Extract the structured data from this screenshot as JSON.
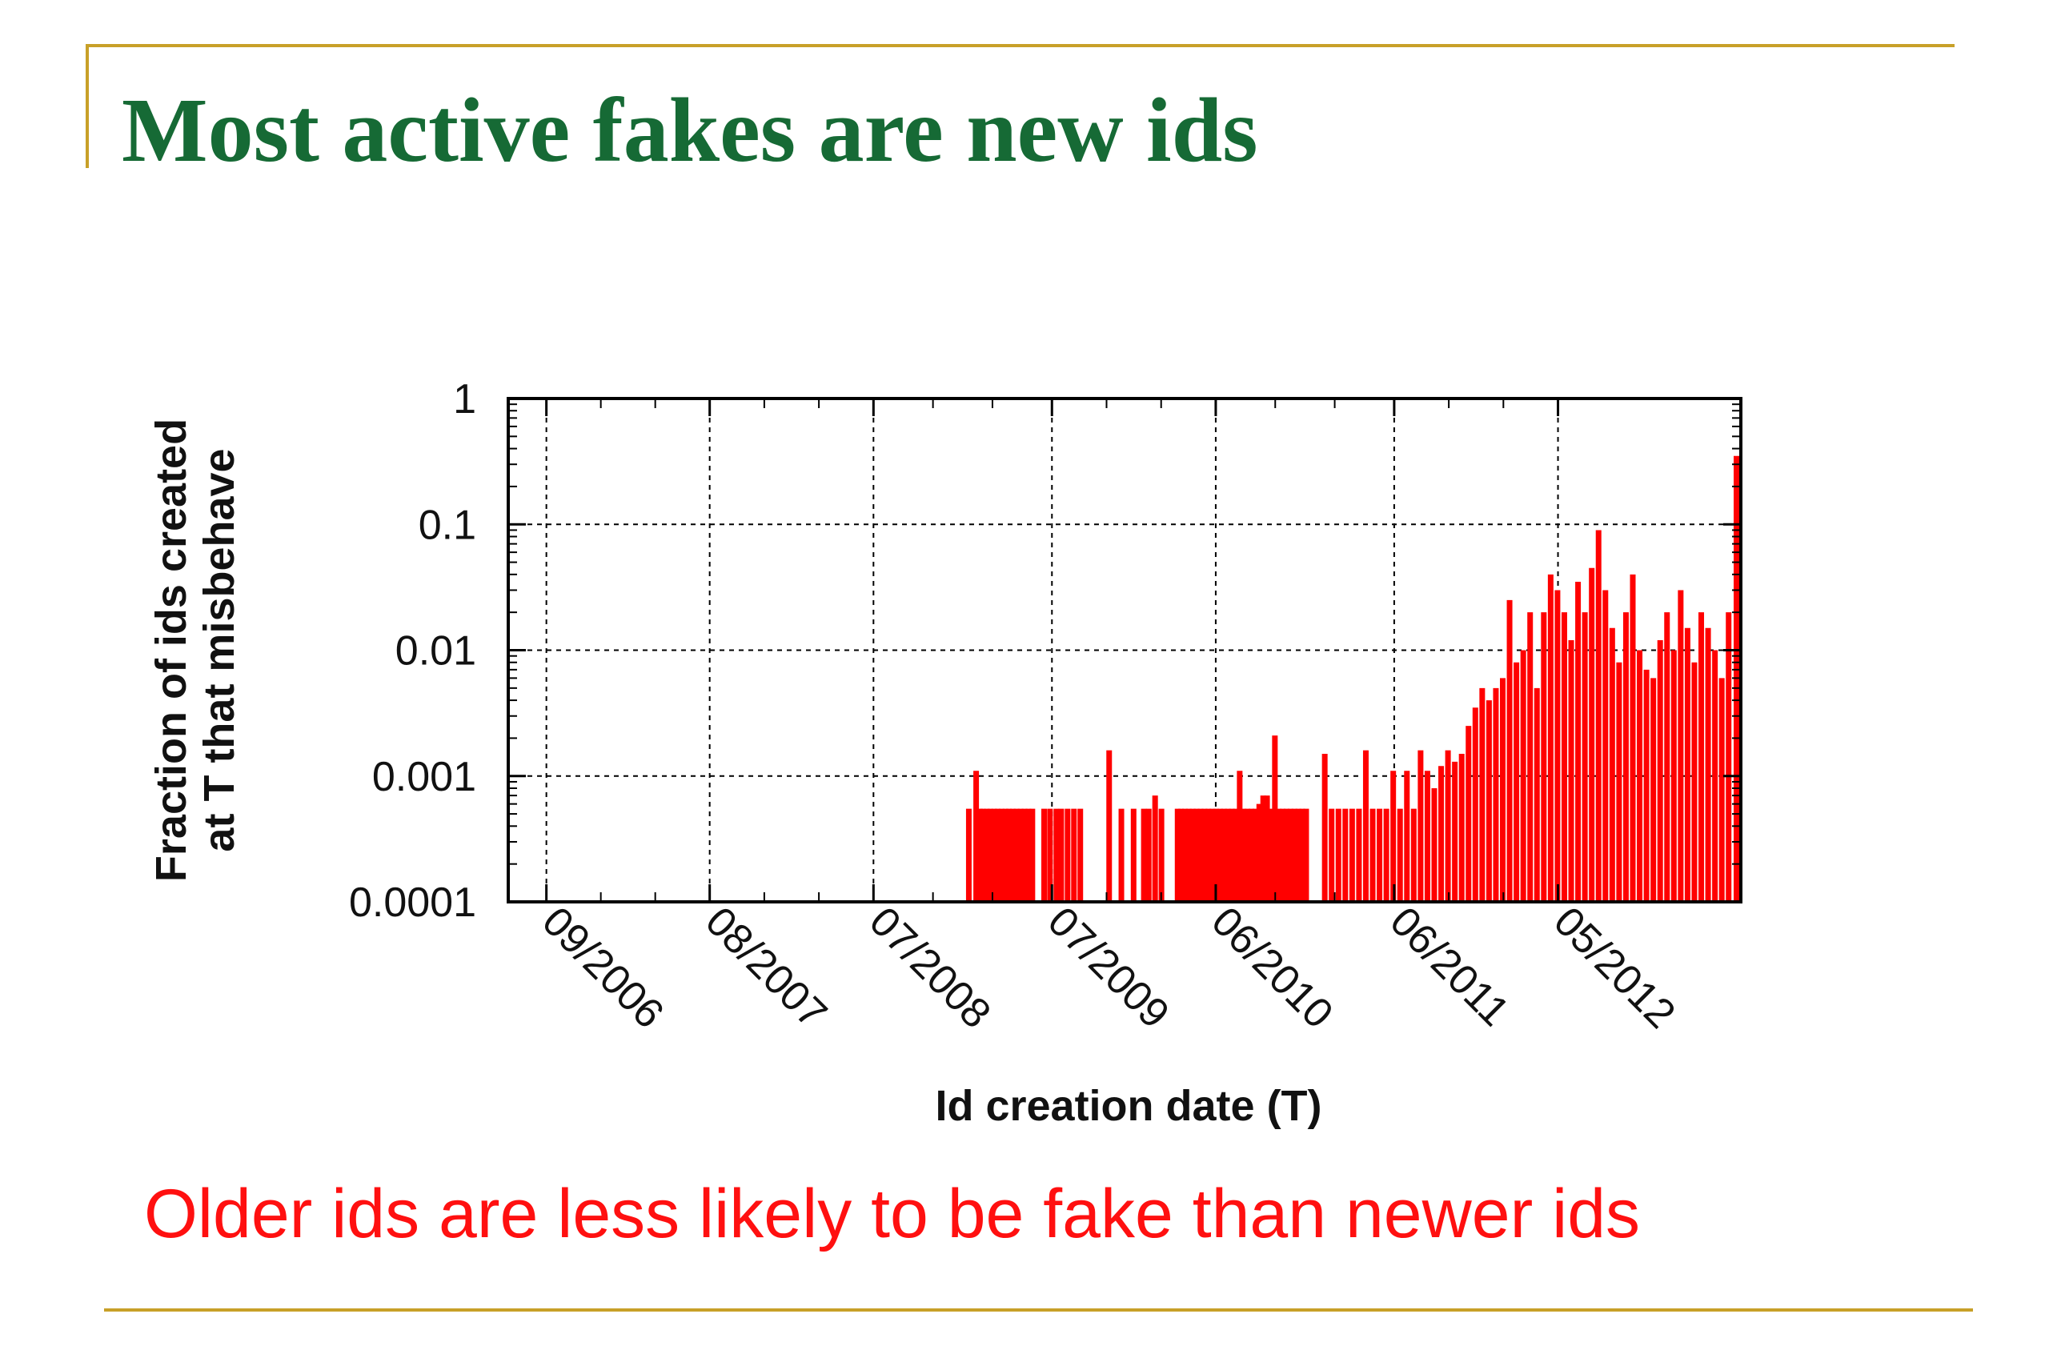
{
  "slide": {
    "title": "Most active fakes are new ids",
    "caption": "Older ids are less likely to be fake than newer ids",
    "colors": {
      "title": "#166a35",
      "rule": "#c8a028",
      "caption": "#ff1010"
    }
  },
  "chart_data": {
    "type": "bar",
    "y_scale": "log",
    "ylabel_lines": [
      "Fraction of ids created",
      "at T that misbehave"
    ],
    "xlabel": "Id creation date (T)",
    "ylim": [
      0.0001,
      1
    ],
    "y_ticks": [
      {
        "value": 0.0001,
        "label": "0.0001"
      },
      {
        "value": 0.001,
        "label": "0.001"
      },
      {
        "value": 0.01,
        "label": "0.01"
      },
      {
        "value": 0.1,
        "label": "0.1"
      },
      {
        "value": 1,
        "label": "1"
      }
    ],
    "xlim": [
      "2006-06-15",
      "2013-05-10"
    ],
    "x_ticks": [
      {
        "date": "2006-09-01",
        "label": "09/2006"
      },
      {
        "date": "2007-08-01",
        "label": "08/2007"
      },
      {
        "date": "2008-07-01",
        "label": "07/2008"
      },
      {
        "date": "2009-07-01",
        "label": "07/2009"
      },
      {
        "date": "2010-06-01",
        "label": "06/2010"
      },
      {
        "date": "2011-06-01",
        "label": "06/2011"
      },
      {
        "date": "2012-05-01",
        "label": "05/2012"
      }
    ],
    "grid": true,
    "bar_color": "#ff0000",
    "series": [
      {
        "x": [
          "2009-01-12",
          "2009-01-27",
          "2009-02-04",
          "2009-02-10",
          "2009-02-18",
          "2009-02-25",
          "2009-03-05",
          "2009-03-12",
          "2009-03-20",
          "2009-03-28",
          "2009-04-04",
          "2009-04-12",
          "2009-04-20",
          "2009-04-28",
          "2009-05-06",
          "2009-05-14",
          "2009-05-22",
          "2009-06-15",
          "2009-06-27",
          "2009-07-10",
          "2009-07-20",
          "2009-08-02",
          "2009-08-15",
          "2009-08-28",
          "2009-10-26",
          "2009-11-20",
          "2009-12-15",
          "2010-01-05",
          "2010-01-15",
          "2010-01-28",
          "2010-02-10",
          "2010-03-15",
          "2010-03-22",
          "2010-03-30",
          "2010-04-07",
          "2010-04-15",
          "2010-04-23",
          "2010-05-01",
          "2010-05-09",
          "2010-05-17",
          "2010-05-25",
          "2010-06-02",
          "2010-06-10",
          "2010-06-18",
          "2010-06-26",
          "2010-07-04",
          "2010-07-12",
          "2010-07-20",
          "2010-07-28",
          "2010-08-05",
          "2010-08-13",
          "2010-08-21",
          "2010-08-29",
          "2010-09-06",
          "2010-09-14",
          "2010-09-22",
          "2010-09-30",
          "2010-10-08",
          "2010-10-16",
          "2010-10-24",
          "2010-11-01",
          "2010-11-09",
          "2010-11-17",
          "2010-11-25",
          "2010-12-03",
          "2011-01-10",
          "2011-01-24",
          "2011-02-07",
          "2011-02-21",
          "2011-03-07",
          "2011-03-21",
          "2011-04-04",
          "2011-04-18",
          "2011-05-02",
          "2011-05-16",
          "2011-05-30",
          "2011-06-13",
          "2011-06-27",
          "2011-07-11",
          "2011-07-25",
          "2011-08-08",
          "2011-08-22",
          "2011-09-05",
          "2011-09-19",
          "2011-10-03",
          "2011-10-17",
          "2011-10-31",
          "2011-11-14",
          "2011-11-28",
          "2011-12-12",
          "2011-12-26",
          "2012-01-09",
          "2012-01-23",
          "2012-02-06",
          "2012-02-20",
          "2012-03-05",
          "2012-03-19",
          "2012-04-02",
          "2012-04-16",
          "2012-04-30",
          "2012-05-14",
          "2012-05-28",
          "2012-06-11",
          "2012-06-25",
          "2012-07-09",
          "2012-07-23",
          "2012-08-06",
          "2012-08-20",
          "2012-09-03",
          "2012-09-17",
          "2012-10-01",
          "2012-10-15",
          "2012-10-29",
          "2012-11-12",
          "2012-11-26",
          "2012-12-10",
          "2012-12-24",
          "2013-01-07",
          "2013-01-21",
          "2013-02-04",
          "2013-02-18",
          "2013-03-04",
          "2013-03-18",
          "2013-04-01",
          "2013-04-15",
          "2013-05-01"
        ],
        "y": [
          0.00055,
          0.0011,
          0.00055,
          0.00055,
          0.00055,
          0.00055,
          0.00055,
          0.00055,
          0.00055,
          0.00055,
          0.00055,
          0.00055,
          0.00055,
          0.00055,
          0.00055,
          0.00055,
          0.00055,
          0.00055,
          0.00055,
          0.00055,
          0.00055,
          0.00055,
          0.00055,
          0.00055,
          0.0016,
          0.00055,
          0.00055,
          0.00055,
          0.00055,
          0.0007,
          0.00055,
          0.00055,
          0.00055,
          0.00055,
          0.00055,
          0.00055,
          0.00055,
          0.00055,
          0.00055,
          0.00055,
          0.00055,
          0.00055,
          0.00055,
          0.00055,
          0.00055,
          0.00055,
          0.00055,
          0.0011,
          0.00055,
          0.00055,
          0.00055,
          0.00055,
          0.0006,
          0.0007,
          0.0007,
          0.00055,
          0.0021,
          0.00055,
          0.00055,
          0.00055,
          0.00055,
          0.00055,
          0.00055,
          0.00055,
          0.00055,
          0.0015,
          0.00055,
          0.00055,
          0.00055,
          0.00055,
          0.00055,
          0.0016,
          0.00055,
          0.00055,
          0.00055,
          0.0011,
          0.00055,
          0.0011,
          0.00055,
          0.0016,
          0.0011,
          0.0008,
          0.0012,
          0.0016,
          0.0013,
          0.0015,
          0.0025,
          0.0035,
          0.005,
          0.004,
          0.005,
          0.006,
          0.025,
          0.008,
          0.01,
          0.02,
          0.005,
          0.02,
          0.04,
          0.03,
          0.02,
          0.012,
          0.035,
          0.02,
          0.045,
          0.09,
          0.03,
          0.015,
          0.008,
          0.02,
          0.04,
          0.01,
          0.007,
          0.006,
          0.012,
          0.02,
          0.01,
          0.03,
          0.015,
          0.008,
          0.02,
          0.015,
          0.01,
          0.006,
          0.02,
          0.35
        ]
      }
    ]
  }
}
